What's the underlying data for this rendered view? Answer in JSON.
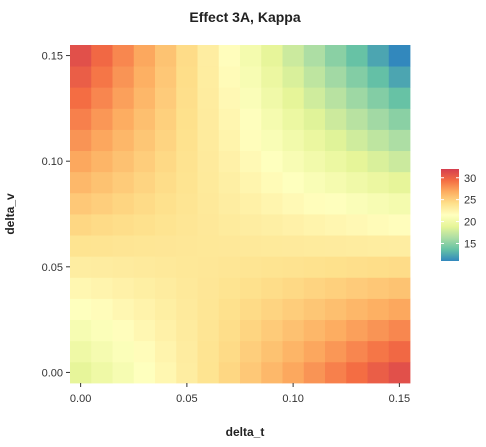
{
  "chart_data": {
    "type": "heatmap",
    "title": "Effect 3A, Kappa",
    "xlabel": "delta_t",
    "ylabel": "delta_v",
    "x_ticks": [
      "0.00",
      "0.05",
      "0.10",
      "0.15"
    ],
    "x_tick_values": [
      0,
      0.05,
      0.1,
      0.15
    ],
    "y_ticks": [
      "0.00",
      "0.05",
      "0.10",
      "0.15"
    ],
    "y_tick_values": [
      0,
      0.05,
      0.1,
      0.15
    ],
    "xlim": [
      -0.005,
      0.155
    ],
    "ylim": [
      -0.005,
      0.155
    ],
    "grid": {
      "step": 0.01,
      "n": 16
    },
    "value_range": [
      11,
      32
    ],
    "legend": {
      "position": "right",
      "ticks": [
        "30",
        "25",
        "20",
        "15"
      ],
      "tick_values": [
        30,
        25,
        20,
        15
      ]
    },
    "colorscale": [
      "#3288bd",
      "#66c2a5",
      "#abdda4",
      "#e6f598",
      "#ffffbf",
      "#fee08b",
      "#fdae61",
      "#f46d43",
      "#d53e4f"
    ],
    "corner_values": {
      "x0_y0": 19,
      "x015_y0": 31,
      "x0_y015": 31,
      "x015_y015": 11
    }
  }
}
